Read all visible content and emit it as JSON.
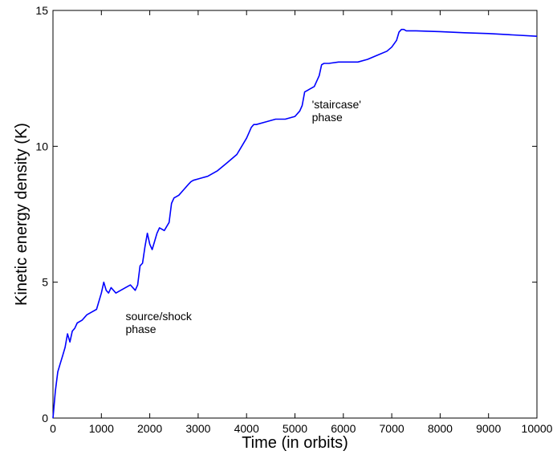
{
  "chart_data": {
    "type": "line",
    "title": "",
    "xlabel": "Time (in orbits)",
    "ylabel": "Kinetic energy density (K)",
    "xlim": [
      0,
      10000
    ],
    "ylim": [
      0,
      15
    ],
    "xticks": [
      0,
      1000,
      2000,
      3000,
      4000,
      5000,
      6000,
      7000,
      8000,
      9000,
      10000
    ],
    "yticks": [
      0,
      5,
      10,
      15
    ],
    "grid": false,
    "legend": "none",
    "line_color": "#0000ff",
    "annotations": [
      {
        "lines": [
          "source/shock",
          "phase"
        ],
        "x": 1500,
        "y": 3.6
      },
      {
        "lines": [
          "'staircase'",
          "phase"
        ],
        "x": 5350,
        "y": 11.4
      }
    ],
    "series": [
      {
        "x": [
          0,
          20,
          50,
          100,
          150,
          200,
          250,
          300,
          350,
          400,
          450,
          500,
          600,
          700,
          800,
          900,
          1000,
          1050,
          1100,
          1150,
          1200,
          1300,
          1400,
          1500,
          1600,
          1700,
          1750,
          1800,
          1850,
          1900,
          1950,
          2000,
          2050,
          2100,
          2150,
          2200,
          2300,
          2400,
          2450,
          2500,
          2600,
          2700,
          2800,
          2850,
          2900,
          3000,
          3200,
          3400,
          3600,
          3800,
          3900,
          4000,
          4050,
          4100,
          4150,
          4200,
          4400,
          4600,
          4800,
          5000,
          5100,
          5150,
          5200,
          5250,
          5300,
          5400,
          5500,
          5550,
          5600,
          5700,
          5900,
          6100,
          6300,
          6500,
          6700,
          6900,
          7000,
          7100,
          7150,
          7200,
          7250,
          7300,
          7500,
          8000,
          8500,
          9000,
          9500,
          10000
        ],
        "y": [
          0.0,
          0.4,
          1.0,
          1.7,
          2.0,
          2.3,
          2.6,
          3.1,
          2.8,
          3.2,
          3.3,
          3.5,
          3.6,
          3.8,
          3.9,
          4.0,
          4.6,
          5.0,
          4.7,
          4.6,
          4.8,
          4.6,
          4.7,
          4.8,
          4.9,
          4.7,
          4.9,
          5.6,
          5.7,
          6.3,
          6.8,
          6.4,
          6.2,
          6.5,
          6.8,
          7.0,
          6.9,
          7.2,
          7.9,
          8.1,
          8.2,
          8.4,
          8.6,
          8.7,
          8.75,
          8.8,
          8.9,
          9.1,
          9.4,
          9.7,
          10.0,
          10.3,
          10.5,
          10.7,
          10.8,
          10.8,
          10.9,
          11.0,
          11.0,
          11.1,
          11.3,
          11.5,
          12.0,
          12.05,
          12.1,
          12.2,
          12.6,
          13.0,
          13.05,
          13.05,
          13.1,
          13.1,
          13.1,
          13.2,
          13.35,
          13.5,
          13.65,
          13.9,
          14.2,
          14.3,
          14.3,
          14.25,
          14.25,
          14.22,
          14.18,
          14.15,
          14.1,
          14.05
        ]
      }
    ]
  }
}
